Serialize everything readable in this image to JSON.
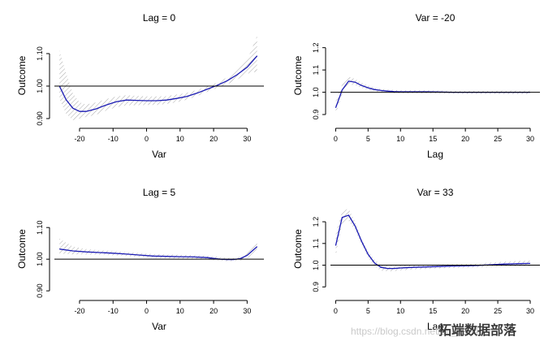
{
  "chart_data": [
    {
      "type": "line",
      "title": "Lag = 0",
      "xlabel": "Var",
      "ylabel": "Outcome",
      "xlim": [
        -27.5,
        35
      ],
      "ylim": [
        0.885,
        1.18
      ],
      "xticks": [
        -20,
        -10,
        0,
        10,
        20,
        30
      ],
      "xtick_labels": [
        "-20",
        "-10",
        "0",
        "10",
        "20",
        "30"
      ],
      "yticks": [
        0.9,
        1.0,
        1.1
      ],
      "ytick_labels": [
        "0.90",
        "1.00",
        "1.10"
      ],
      "reference_line": 1.0,
      "series": [
        {
          "name": "estimate",
          "x": [
            -26,
            -24,
            -22,
            -20,
            -18,
            -15,
            -12,
            -9,
            -6,
            -3,
            0,
            3,
            6,
            9,
            12,
            15,
            18,
            21,
            24,
            27,
            30,
            33
          ],
          "values": [
            1.0,
            0.958,
            0.932,
            0.922,
            0.922,
            0.93,
            0.942,
            0.952,
            0.957,
            0.956,
            0.955,
            0.955,
            0.957,
            0.962,
            0.968,
            0.978,
            0.99,
            1.002,
            1.016,
            1.035,
            1.058,
            1.093
          ],
          "lower": [
            0.96,
            0.915,
            0.895,
            0.9,
            0.905,
            0.912,
            0.925,
            0.935,
            0.941,
            0.941,
            0.942,
            0.942,
            0.945,
            0.95,
            0.958,
            0.969,
            0.982,
            0.994,
            1.005,
            1.02,
            1.038,
            1.045
          ],
          "upper": [
            1.11,
            1.04,
            0.978,
            0.95,
            0.943,
            0.95,
            0.96,
            0.968,
            0.972,
            0.97,
            0.968,
            0.968,
            0.969,
            0.974,
            0.979,
            0.988,
            0.998,
            1.01,
            1.027,
            1.05,
            1.08,
            1.155
          ]
        }
      ]
    },
    {
      "type": "line",
      "title": "Var = -20",
      "xlabel": "Lag",
      "ylabel": "Outcome",
      "xlim": [
        -0.8,
        31.5
      ],
      "ylim": [
        0.86,
        1.29
      ],
      "xticks": [
        0,
        5,
        10,
        15,
        20,
        25,
        30
      ],
      "xtick_labels": [
        "0",
        "5",
        "10",
        "15",
        "20",
        "25",
        "30"
      ],
      "yticks": [
        0.9,
        1.0,
        1.1,
        1.2
      ],
      "ytick_labels": [
        "0.9",
        "1.0",
        "1.1",
        "1.2"
      ],
      "reference_line": 1.0,
      "series": [
        {
          "name": "estimate",
          "x": [
            0,
            1,
            2,
            3,
            4,
            5,
            6,
            7,
            8,
            9,
            10,
            12,
            14,
            16,
            18,
            20,
            22,
            24,
            26,
            28,
            30
          ],
          "values": [
            0.93,
            1.01,
            1.05,
            1.045,
            1.03,
            1.02,
            1.012,
            1.008,
            1.005,
            1.003,
            1.002,
            1.002,
            1.002,
            1.001,
            1.0,
            1.0,
            1.0,
            1.0,
            1.0,
            1.0,
            1.0
          ],
          "lower": [
            0.9,
            0.99,
            1.035,
            1.032,
            1.02,
            1.01,
            1.004,
            1.0,
            0.998,
            0.996,
            0.995,
            0.995,
            0.995,
            0.994,
            0.994,
            0.993,
            0.993,
            0.993,
            0.992,
            0.992,
            0.992
          ],
          "upper": [
            0.96,
            1.035,
            1.07,
            1.06,
            1.042,
            1.03,
            1.02,
            1.015,
            1.012,
            1.01,
            1.009,
            1.009,
            1.009,
            1.008,
            1.007,
            1.007,
            1.007,
            1.007,
            1.008,
            1.008,
            1.008
          ]
        }
      ]
    },
    {
      "type": "line",
      "title": "Lag = 5",
      "xlabel": "Var",
      "ylabel": "Outcome",
      "xlim": [
        -27.5,
        35
      ],
      "ylim": [
        0.885,
        1.18
      ],
      "xticks": [
        -20,
        -10,
        0,
        10,
        20,
        30
      ],
      "xtick_labels": [
        "-20",
        "-10",
        "0",
        "10",
        "20",
        "30"
      ],
      "yticks": [
        0.9,
        1.0,
        1.1
      ],
      "ytick_labels": [
        "0.90",
        "1.00",
        "1.10"
      ],
      "reference_line": 1.0,
      "series": [
        {
          "name": "estimate",
          "x": [
            -26,
            -22,
            -18,
            -14,
            -10,
            -6,
            -2,
            2,
            6,
            10,
            14,
            18,
            22,
            24,
            26,
            28,
            30,
            33
          ],
          "values": [
            1.032,
            1.026,
            1.023,
            1.021,
            1.019,
            1.016,
            1.013,
            1.01,
            1.009,
            1.008,
            1.007,
            1.005,
            1.0,
            0.999,
            0.999,
            1.002,
            1.012,
            1.04
          ],
          "lower": [
            1.018,
            1.015,
            1.015,
            1.014,
            1.012,
            1.01,
            1.007,
            1.004,
            1.003,
            1.002,
            1.001,
            0.999,
            0.995,
            0.994,
            0.994,
            0.996,
            1.003,
            1.02
          ],
          "upper": [
            1.065,
            1.04,
            1.032,
            1.028,
            1.026,
            1.022,
            1.019,
            1.016,
            1.015,
            1.014,
            1.013,
            1.011,
            1.006,
            1.004,
            1.004,
            1.008,
            1.022,
            1.06
          ]
        }
      ]
    },
    {
      "type": "line",
      "title": "Var = 33",
      "xlabel": "Lag",
      "ylabel": "Outcome",
      "xlim": [
        -0.8,
        31.5
      ],
      "ylim": [
        0.86,
        1.29
      ],
      "xticks": [
        0,
        5,
        10,
        15,
        20,
        25,
        30
      ],
      "xtick_labels": [
        "0",
        "5",
        "10",
        "15",
        "20",
        "25",
        "30"
      ],
      "yticks": [
        0.9,
        1.0,
        1.1,
        1.2
      ],
      "ytick_labels": [
        "0.9",
        "1.0",
        "1.1",
        "1.2"
      ],
      "reference_line": 1.0,
      "series": [
        {
          "name": "estimate",
          "x": [
            0,
            1,
            2,
            3,
            4,
            5,
            6,
            7,
            8,
            9,
            10,
            12,
            14,
            16,
            18,
            20,
            22,
            24,
            26,
            28,
            30
          ],
          "values": [
            1.09,
            1.22,
            1.23,
            1.18,
            1.11,
            1.05,
            1.01,
            0.99,
            0.985,
            0.985,
            0.987,
            0.99,
            0.992,
            0.994,
            0.996,
            0.997,
            0.999,
            1.002,
            1.005,
            1.007,
            1.008
          ],
          "lower": [
            1.04,
            1.19,
            1.205,
            1.16,
            1.095,
            1.035,
            0.995,
            0.975,
            0.972,
            0.973,
            0.976,
            0.98,
            0.983,
            0.985,
            0.987,
            0.988,
            0.99,
            0.992,
            0.994,
            0.995,
            0.996
          ],
          "upper": [
            1.14,
            1.25,
            1.26,
            1.2,
            1.125,
            1.065,
            1.025,
            1.003,
            0.998,
            0.997,
            0.998,
            1.0,
            1.001,
            1.003,
            1.005,
            1.006,
            1.008,
            1.012,
            1.016,
            1.019,
            1.021
          ]
        }
      ]
    }
  ],
  "watermark": {
    "url_text": "https://blog.csdn.net/qq_1934",
    "logo_text": "拓端数据部落"
  },
  "colors": {
    "line": "#1a1ab4",
    "band": "#a8a8a8",
    "axis": "#000000"
  }
}
